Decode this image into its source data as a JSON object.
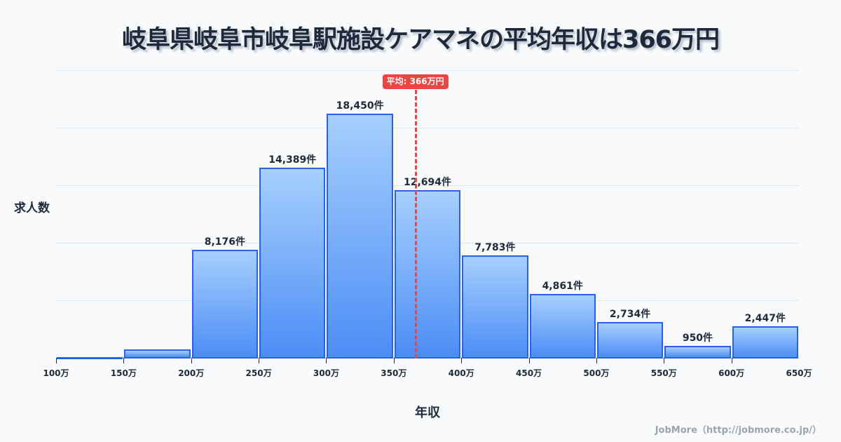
{
  "title": "岐阜県岐阜市岐阜駅施設ケアマネの平均年収は366万円",
  "footer": "JobMore（http://jobmore.co.jp/）",
  "chart_data": {
    "type": "bar",
    "title": "岐阜県岐阜市岐阜駅施設ケアマネの平均年収は366万円",
    "xlabel": "年収",
    "ylabel": "求人数",
    "x_ticks": [
      "100万",
      "150万",
      "200万",
      "250万",
      "300万",
      "350万",
      "400万",
      "450万",
      "500万",
      "550万",
      "600万",
      "650万"
    ],
    "categories": [
      "100-150万",
      "150-200万",
      "200-250万",
      "250-300万",
      "300-350万",
      "350-400万",
      "400-450万",
      "450-500万",
      "500-550万",
      "550-600万",
      "600-650万"
    ],
    "values": [
      50,
      690,
      8176,
      14389,
      18450,
      12694,
      7783,
      4861,
      2734,
      950,
      2447
    ],
    "labels": [
      "",
      "",
      "8,176件",
      "14,389件",
      "18,450件",
      "12,694件",
      "7,783件",
      "4,861件",
      "2,734件",
      "950件",
      "2,447件"
    ],
    "ylim": [
      0,
      21675
    ],
    "grid": true,
    "mean": {
      "value": 366,
      "label": "平均: 366万円",
      "color": "#ef4444"
    },
    "colors": {
      "bar_top": "#a6cffd",
      "bar_bottom": "#4c8df6",
      "bar_border": "#2563eb"
    }
  }
}
